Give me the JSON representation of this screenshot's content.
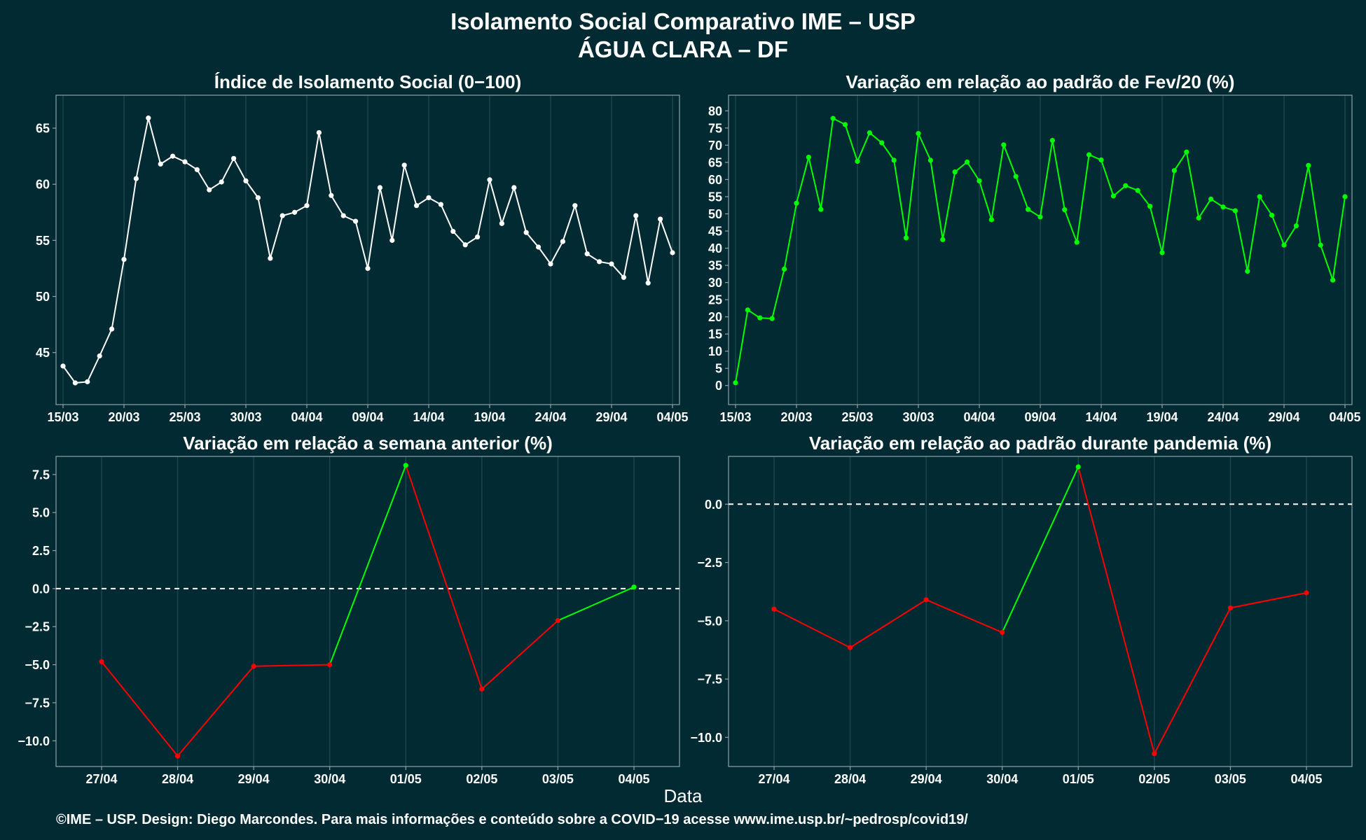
{
  "title_line1": "Isolamento Social Comparativo IME – USP",
  "title_line2": "ÁGUA CLARA – DF",
  "x_axis_title": "Data",
  "caption": "©IME – USP. Design: Diego Marcondes. Para mais informações e conteúdo sobre a COVID−19 acesse www.ime.usp.br/~pedrosp/covid19/",
  "colors": {
    "background": "#022a33",
    "white": "#ffffff",
    "green": "#00ff00",
    "red": "#ff0000"
  },
  "chart_data": [
    {
      "id": "indice",
      "type": "line",
      "title": "Índice de Isolamento Social (0−100)",
      "x_start": "15/03",
      "x_tick_labels": [
        "15/03",
        "20/03",
        "25/03",
        "30/03",
        "04/04",
        "09/04",
        "14/04",
        "19/04",
        "24/04",
        "29/04",
        "04/05"
      ],
      "ylim": [
        41.3,
        67.0
      ],
      "yticks": [
        45,
        50,
        55,
        60,
        65
      ],
      "y_tick_labels": [
        "45",
        "50",
        "55",
        "60",
        "65"
      ],
      "series_color": "white",
      "values": [
        43.8,
        42.3,
        42.4,
        44.7,
        47.1,
        53.3,
        60.5,
        65.9,
        61.8,
        62.5,
        62.0,
        61.3,
        59.5,
        60.2,
        62.3,
        60.3,
        58.8,
        53.4,
        57.2,
        57.5,
        58.1,
        64.6,
        59.0,
        57.2,
        56.7,
        52.5,
        59.7,
        55.0,
        61.7,
        58.1,
        58.8,
        58.2,
        55.8,
        54.6,
        55.3,
        60.4,
        56.5,
        59.7,
        55.7,
        54.4,
        52.9,
        54.9,
        58.1,
        53.8,
        53.1,
        52.9,
        51.7,
        57.2,
        51.2,
        56.9,
        53.9
      ]
    },
    {
      "id": "fev",
      "type": "line",
      "title": "Variação em relação ao padrão de Fev/20 (%)",
      "x_start": "15/03",
      "x_tick_labels": [
        "15/03",
        "20/03",
        "25/03",
        "30/03",
        "04/04",
        "09/04",
        "14/04",
        "19/04",
        "24/04",
        "29/04",
        "04/05"
      ],
      "ylim": [
        -2.5,
        81.5
      ],
      "yticks": [
        0,
        5,
        10,
        15,
        20,
        25,
        30,
        35,
        40,
        45,
        50,
        55,
        60,
        65,
        70,
        75,
        80
      ],
      "y_tick_labels": [
        "0",
        "5",
        "10",
        "15",
        "20",
        "25",
        "30",
        "35",
        "40",
        "45",
        "50",
        "55",
        "60",
        "65",
        "70",
        "75",
        "80"
      ],
      "series_color": "green",
      "values": [
        0.8,
        22.0,
        19.7,
        19.5,
        33.9,
        53.1,
        66.5,
        51.3,
        77.8,
        76.0,
        65.3,
        73.6,
        70.7,
        65.6,
        43.0,
        73.4,
        65.6,
        42.5,
        62.2,
        65.1,
        59.6,
        48.3,
        70.1,
        60.9,
        51.3,
        49.1,
        71.4,
        51.2,
        41.7,
        67.2,
        65.7,
        55.2,
        58.2,
        56.8,
        52.2,
        38.7,
        62.6,
        68.0,
        48.8,
        54.3,
        52.0,
        50.9,
        33.3,
        55.0,
        49.6,
        40.9,
        46.5,
        64.1,
        40.9,
        30.7,
        55.0
      ]
    },
    {
      "id": "semana",
      "type": "line",
      "title": "Variação em relação a semana anterior (%)",
      "categories": [
        "27/04",
        "28/04",
        "29/04",
        "30/04",
        "01/05",
        "02/05",
        "03/05",
        "04/05"
      ],
      "ylim": [
        -11.0,
        8.0
      ],
      "yticks": [
        -10,
        -7.5,
        -5,
        -2.5,
        0,
        2.5,
        5,
        7.5
      ],
      "y_tick_labels": [
        "−10.0",
        "−7.5",
        "−5.0",
        "−2.5",
        "0.0",
        "2.5",
        "5.0",
        "7.5"
      ],
      "reference_line": 0,
      "values": [
        -4.8,
        -11.0,
        -5.1,
        -5.0,
        8.1,
        -6.6,
        -2.1,
        0.1
      ],
      "segment_colors": [
        "red",
        "red",
        "red",
        "green",
        "red",
        "red",
        "green"
      ],
      "point_colors": [
        "red",
        "red",
        "red",
        "red",
        "green",
        "red",
        "red",
        "green"
      ]
    },
    {
      "id": "pandemia",
      "type": "line",
      "title": "Variação em relação ao padrão durante pandemia (%)",
      "categories": [
        "27/04",
        "28/04",
        "29/04",
        "30/04",
        "01/05",
        "02/05",
        "03/05",
        "04/05"
      ],
      "ylim": [
        -10.8,
        1.6
      ],
      "yticks": [
        -10,
        -7.5,
        -5,
        -2.5,
        0
      ],
      "y_tick_labels": [
        "−10.0",
        "−7.5",
        "−5.0",
        "−2.5",
        "0.0"
      ],
      "reference_line": 0,
      "values": [
        -4.5,
        -6.15,
        -4.1,
        -5.5,
        1.6,
        -10.7,
        -4.45,
        -3.8
      ],
      "segment_colors": [
        "red",
        "red",
        "red",
        "green",
        "red",
        "red",
        "red"
      ],
      "point_colors": [
        "red",
        "red",
        "red",
        "red",
        "green",
        "red",
        "red",
        "red"
      ]
    }
  ]
}
